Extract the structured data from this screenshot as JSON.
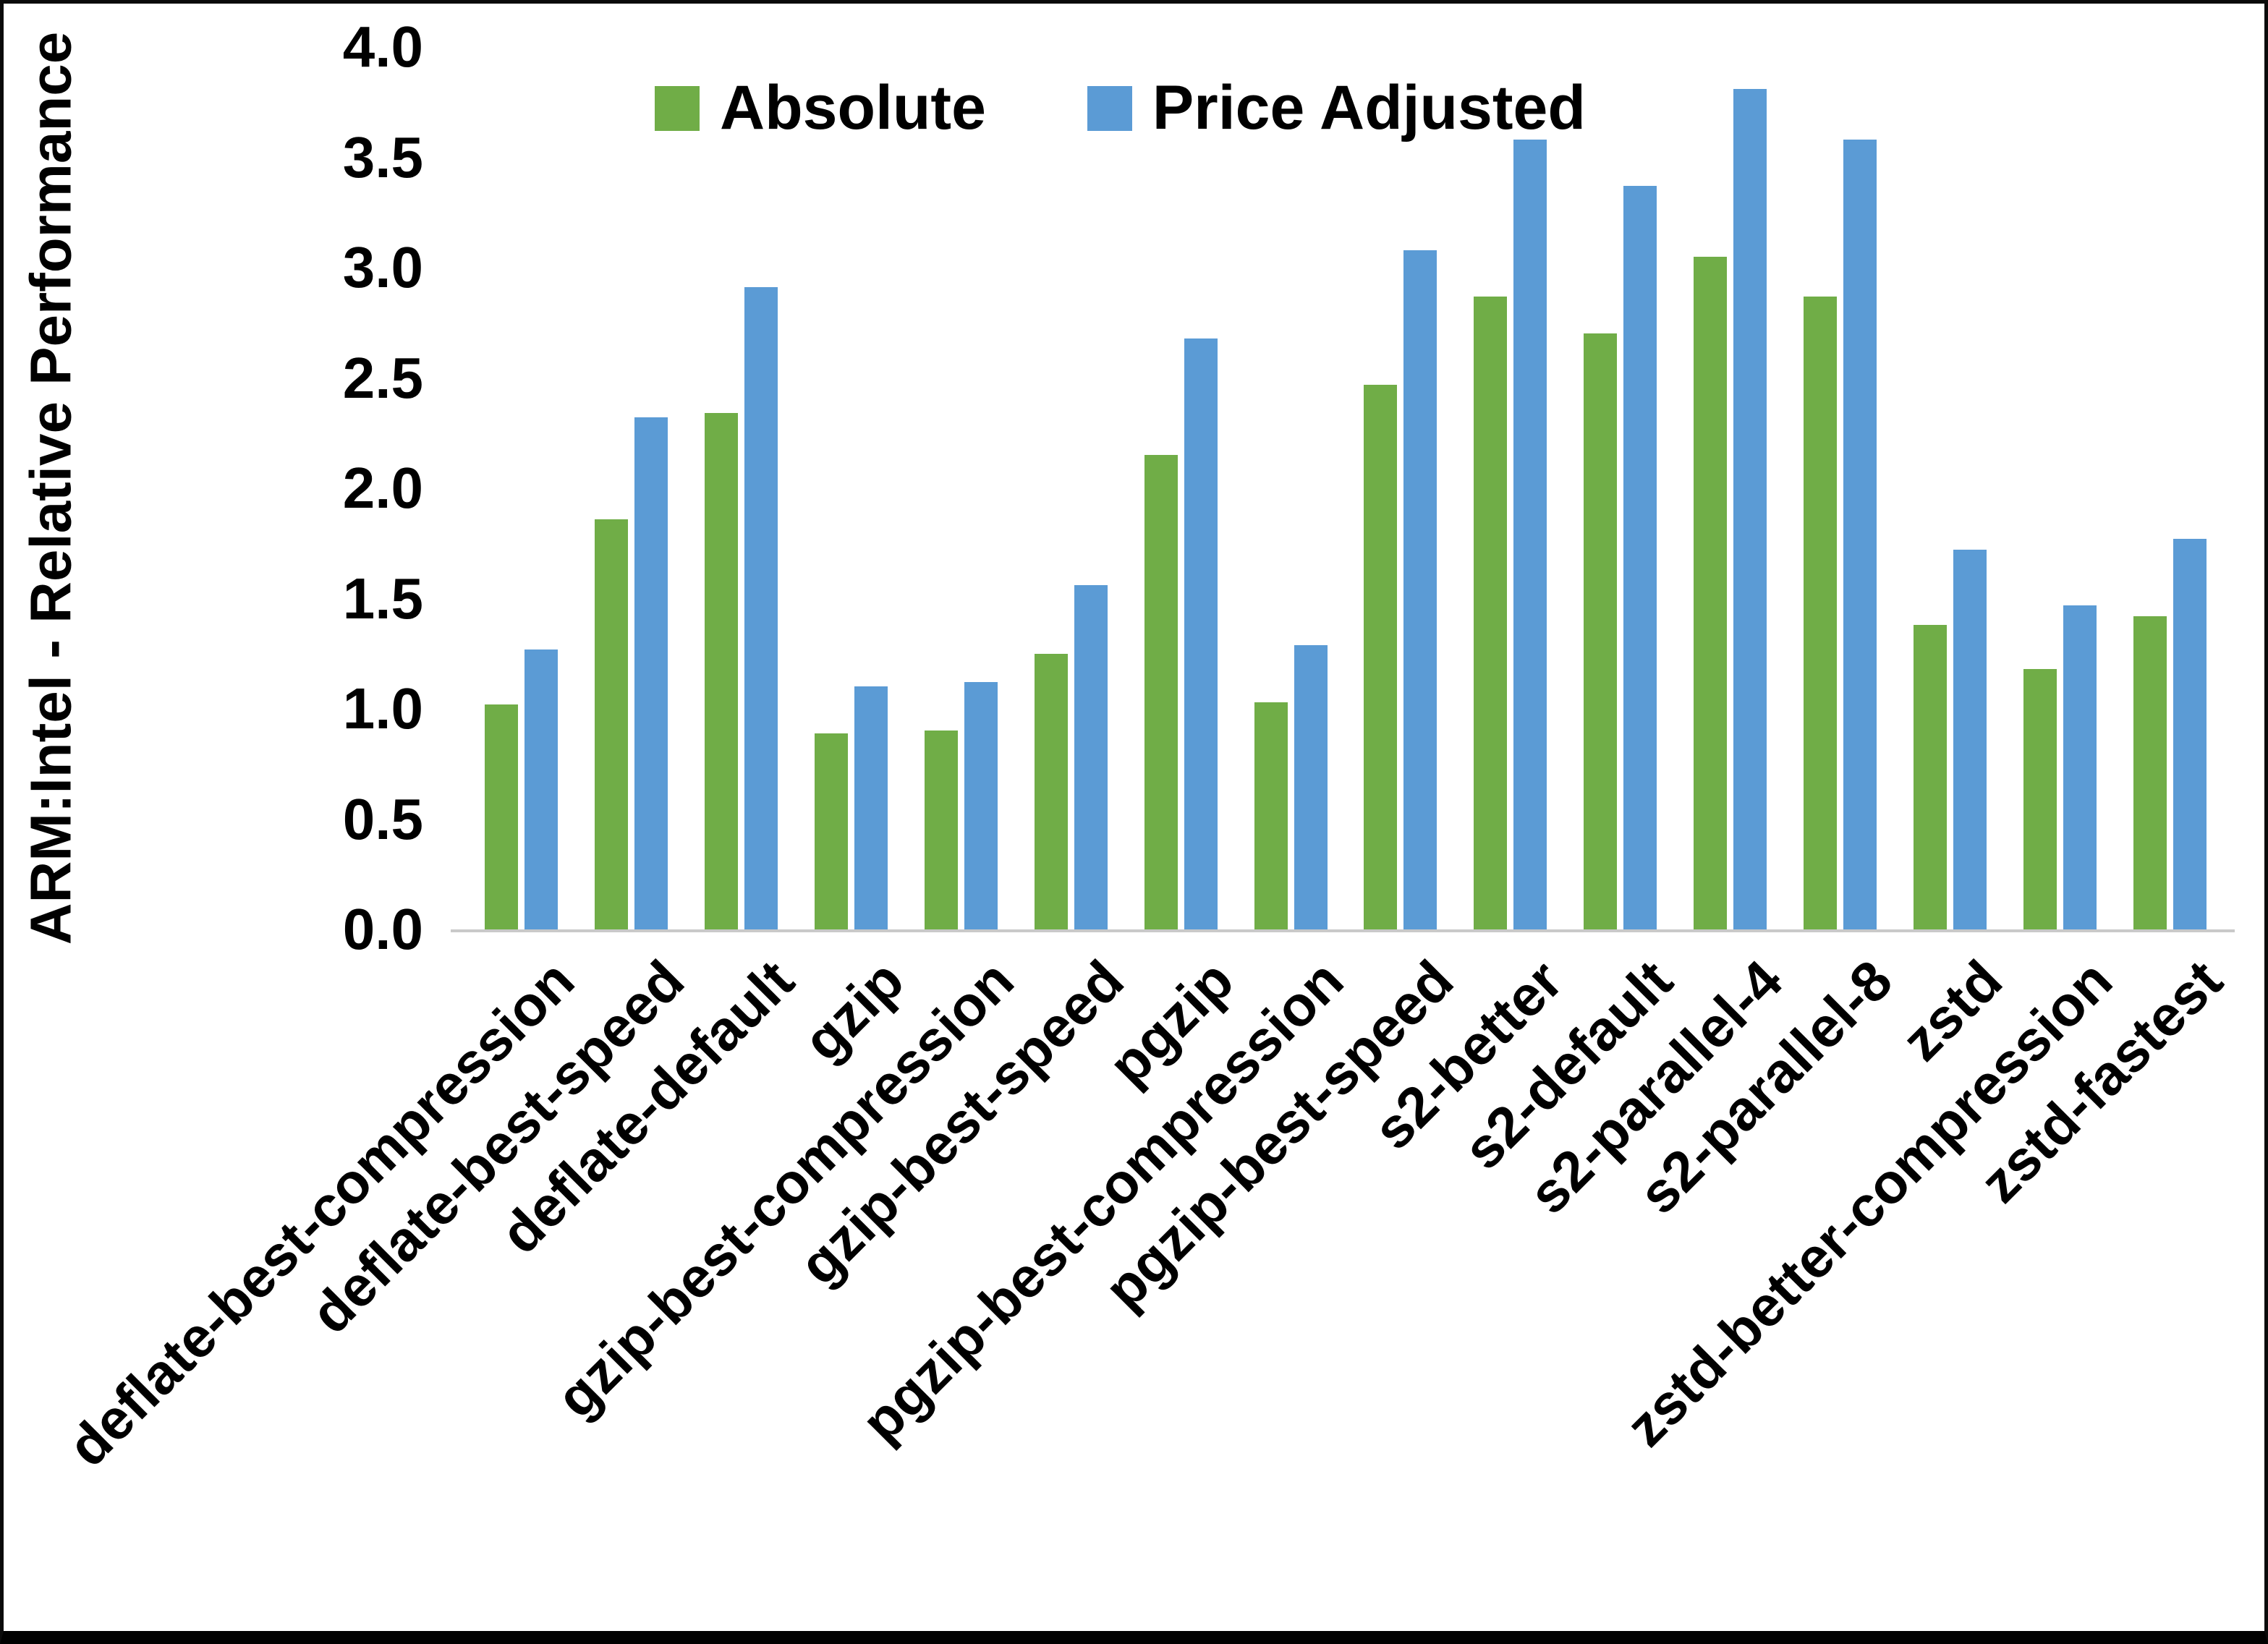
{
  "chart_data": {
    "type": "bar",
    "title": "",
    "xlabel": "",
    "ylabel": "ARM:Intel - Relative Performance",
    "ylim": [
      0,
      4.0
    ],
    "ytick_step": 0.5,
    "yticks": [
      "0.0",
      "0.5",
      "1.0",
      "1.5",
      "2.0",
      "2.5",
      "3.0",
      "3.5",
      "4.0"
    ],
    "grid": false,
    "legend_position": "top-center",
    "categories": [
      "deflate-best-compression",
      "deflate-best-speed",
      "deflate-default",
      "gzip",
      "gzip-best-compression",
      "gzip-best-speed",
      "pgzip",
      "pgzip-best-compression",
      "pgzip-best-speed",
      "s2-better",
      "s2-default",
      "s2-parallel-4",
      "s2-parallel-8",
      "zstd",
      "zstd-better-compression",
      "zstd-fastest"
    ],
    "series": [
      {
        "name": "Absolute",
        "color": "#70AD47",
        "values": [
          1.02,
          1.86,
          2.34,
          0.89,
          0.9,
          1.25,
          2.15,
          1.03,
          2.47,
          2.87,
          2.7,
          3.05,
          2.87,
          1.38,
          1.18,
          1.42
        ]
      },
      {
        "name": "Price Adjusted",
        "color": "#5B9BD5",
        "values": [
          1.27,
          2.32,
          2.91,
          1.1,
          1.12,
          1.56,
          2.68,
          1.29,
          3.08,
          3.58,
          3.37,
          3.81,
          3.58,
          1.72,
          1.47,
          1.77
        ]
      }
    ]
  }
}
